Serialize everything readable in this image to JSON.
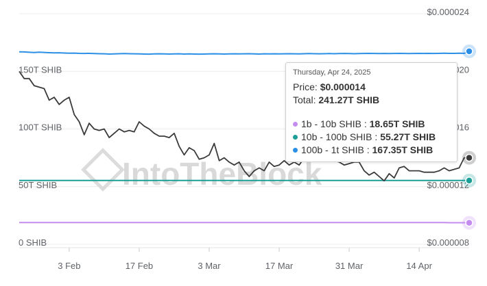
{
  "chart_data": {
    "type": "line",
    "x": [
      "2025-01-24",
      "2025-01-25",
      "2025-01-26",
      "2025-01-27",
      "2025-01-28",
      "2025-01-29",
      "2025-01-30",
      "2025-01-31",
      "2025-02-01",
      "2025-02-02",
      "2025-02-03",
      "2025-02-04",
      "2025-02-05",
      "2025-02-06",
      "2025-02-07",
      "2025-02-08",
      "2025-02-09",
      "2025-02-10",
      "2025-02-11",
      "2025-02-12",
      "2025-02-13",
      "2025-02-14",
      "2025-02-15",
      "2025-02-16",
      "2025-02-17",
      "2025-02-18",
      "2025-02-19",
      "2025-02-20",
      "2025-02-21",
      "2025-02-22",
      "2025-02-23",
      "2025-02-24",
      "2025-02-25",
      "2025-02-26",
      "2025-02-27",
      "2025-02-28",
      "2025-03-01",
      "2025-03-02",
      "2025-03-03",
      "2025-03-04",
      "2025-03-05",
      "2025-03-06",
      "2025-03-07",
      "2025-03-08",
      "2025-03-09",
      "2025-03-10",
      "2025-03-11",
      "2025-03-12",
      "2025-03-13",
      "2025-03-14",
      "2025-03-15",
      "2025-03-16",
      "2025-03-17",
      "2025-03-18",
      "2025-03-19",
      "2025-03-20",
      "2025-03-21",
      "2025-03-22",
      "2025-03-23",
      "2025-03-24",
      "2025-03-25",
      "2025-03-26",
      "2025-03-27",
      "2025-03-28",
      "2025-03-29",
      "2025-03-30",
      "2025-03-31",
      "2025-04-01",
      "2025-04-02",
      "2025-04-03",
      "2025-04-04",
      "2025-04-05",
      "2025-04-06",
      "2025-04-07",
      "2025-04-08",
      "2025-04-09",
      "2025-04-10",
      "2025-04-11",
      "2025-04-12",
      "2025-04-13",
      "2025-04-14",
      "2025-04-15",
      "2025-04-16",
      "2025-04-17",
      "2025-04-18",
      "2025-04-19",
      "2025-04-20",
      "2025-04-21",
      "2025-04-22",
      "2025-04-23",
      "2025-04-24"
    ],
    "series": [
      {
        "name": "1b - 10b SHIB",
        "axis": "left",
        "color": "#c58cf0",
        "values": [
          18.9,
          18.9,
          18.9,
          18.9,
          18.9,
          18.9,
          18.9,
          18.9,
          18.9,
          18.9,
          18.9,
          18.9,
          18.9,
          18.9,
          18.9,
          18.9,
          18.9,
          18.9,
          18.9,
          18.9,
          18.9,
          18.9,
          18.9,
          18.9,
          18.9,
          18.9,
          18.9,
          18.9,
          18.9,
          18.9,
          18.9,
          18.9,
          18.9,
          18.9,
          18.9,
          18.9,
          18.9,
          18.9,
          18.9,
          18.9,
          18.9,
          18.9,
          18.9,
          18.9,
          18.9,
          18.9,
          18.9,
          18.9,
          18.9,
          18.9,
          18.9,
          18.9,
          18.9,
          18.9,
          18.9,
          18.9,
          18.9,
          18.9,
          18.9,
          18.9,
          18.9,
          18.9,
          18.9,
          18.9,
          18.9,
          18.9,
          18.9,
          18.9,
          18.9,
          18.9,
          18.9,
          18.9,
          18.9,
          18.9,
          18.9,
          18.9,
          18.9,
          18.9,
          18.9,
          18.9,
          18.8,
          18.8,
          18.8,
          18.8,
          18.8,
          18.8,
          18.7,
          18.7,
          18.7,
          18.7,
          18.65
        ]
      },
      {
        "name": "10b - 100b SHIB",
        "axis": "left",
        "color": "#1a9e96",
        "values": [
          55.3,
          55.3,
          55.3,
          55.3,
          55.3,
          55.3,
          55.3,
          55.3,
          55.3,
          55.3,
          55.3,
          55.3,
          55.3,
          55.3,
          55.3,
          55.3,
          55.3,
          55.3,
          55.3,
          55.3,
          55.3,
          55.3,
          55.3,
          55.3,
          55.3,
          55.3,
          55.3,
          55.3,
          55.3,
          55.3,
          55.3,
          55.3,
          55.3,
          55.3,
          55.3,
          55.3,
          55.3,
          55.3,
          55.3,
          55.3,
          55.3,
          55.3,
          55.3,
          55.3,
          55.3,
          55.3,
          55.3,
          55.3,
          55.3,
          55.3,
          55.3,
          55.3,
          55.3,
          55.3,
          55.3,
          55.3,
          55.3,
          55.3,
          55.3,
          55.3,
          55.3,
          55.3,
          55.3,
          55.3,
          55.3,
          55.3,
          55.3,
          55.3,
          55.3,
          55.3,
          55.3,
          55.3,
          55.3,
          55.3,
          55.3,
          55.3,
          55.3,
          55.3,
          55.3,
          55.3,
          55.3,
          55.3,
          55.3,
          55.3,
          55.3,
          55.3,
          55.3,
          55.3,
          55.3,
          55.3,
          55.27
        ]
      },
      {
        "name": "100b - 1t SHIB",
        "axis": "left",
        "color": "#2b8fe6",
        "values": [
          166.9,
          166.8,
          166.5,
          166.3,
          166.6,
          166.4,
          166.2,
          166.0,
          166.1,
          165.9,
          165.7,
          165.8,
          165.6,
          165.5,
          165.6,
          165.4,
          165.3,
          165.2,
          165.0,
          165.1,
          165.3,
          165.4,
          165.3,
          165.2,
          165.1,
          165.0,
          164.9,
          165.1,
          165.2,
          165.1,
          165.0,
          165.1,
          165.2,
          165.0,
          165.1,
          165.0,
          164.9,
          165.0,
          165.1,
          165.2,
          165.1,
          165.0,
          165.1,
          165.2,
          165.1,
          165.2,
          165.3,
          165.1,
          165.0,
          165.2,
          165.1,
          165.2,
          165.1,
          165.2,
          165.3,
          165.2,
          165.1,
          165.3,
          165.4,
          165.3,
          165.2,
          165.3,
          165.4,
          165.3,
          165.4,
          165.5,
          165.4,
          165.3,
          165.4,
          165.5,
          165.6,
          165.5,
          165.4,
          165.5,
          165.4,
          165.5,
          165.6,
          165.5,
          165.4,
          165.5,
          165.6,
          165.5,
          165.6,
          165.5,
          165.6,
          165.7,
          165.6,
          165.6,
          165.7,
          165.6,
          167.35
        ]
      },
      {
        "name": "Price",
        "axis": "right",
        "color": "#3a3a3a",
        "values": [
          2e-05,
          1.95e-05,
          1.95e-05,
          1.9e-05,
          1.89e-05,
          1.88e-05,
          1.8e-05,
          1.82e-05,
          1.77e-05,
          1.8e-05,
          1.82e-05,
          1.7e-05,
          1.65e-05,
          1.56e-05,
          1.64e-05,
          1.6e-05,
          1.59e-05,
          1.6e-05,
          1.54e-05,
          1.57e-05,
          1.6e-05,
          1.58e-05,
          1.59e-05,
          1.58e-05,
          1.65e-05,
          1.62e-05,
          1.6e-05,
          1.57e-05,
          1.55e-05,
          1.55e-05,
          1.54e-05,
          1.57e-05,
          1.48e-05,
          1.42e-05,
          1.47e-05,
          1.45e-05,
          1.39e-05,
          1.4e-05,
          1.42e-05,
          1.5e-05,
          1.38e-05,
          1.4e-05,
          1.37e-05,
          1.35e-05,
          1.37e-05,
          1.31e-05,
          1.27e-05,
          1.31e-05,
          1.33e-05,
          1.31e-05,
          1.37e-05,
          1.34e-05,
          1.35e-05,
          1.38e-05,
          1.35e-05,
          1.37e-05,
          1.35e-05,
          1.4e-05,
          1.38e-05,
          1.4e-05,
          1.44e-05,
          1.5e-05,
          1.43e-05,
          1.38e-05,
          1.37e-05,
          1.35e-05,
          1.36e-05,
          1.37e-05,
          1.37e-05,
          1.31e-05,
          1.28e-05,
          1.3e-05,
          1.27e-05,
          1.24e-05,
          1.29e-05,
          1.26e-05,
          1.33e-05,
          1.34e-05,
          1.31e-05,
          1.31e-05,
          1.31e-05,
          1.3e-05,
          1.3e-05,
          1.3e-05,
          1.31e-05,
          1.33e-05,
          1.31e-05,
          1.32e-05,
          1.33e-05,
          1.4e-05,
          1.4e-05
        ]
      }
    ],
    "yaxis_left": {
      "ticks": [
        {
          "value": 0,
          "label": "0 SHIB"
        },
        {
          "value": 50,
          "label": "50T SHIB"
        },
        {
          "value": 100,
          "label": "100T SHIB"
        },
        {
          "value": 150,
          "label": "150T SHIB"
        }
      ],
      "ylim": [
        0,
        200
      ]
    },
    "yaxis_right": {
      "ticks": [
        {
          "value": 8e-06,
          "label": "$0.000008"
        },
        {
          "value": 1.2e-05,
          "label": "$0.000012"
        },
        {
          "value": 1.6e-05,
          "label": "$0.000016"
        },
        {
          "value": 2e-05,
          "label": "$0.000020"
        },
        {
          "value": 2.4e-05,
          "label": "$0.000024"
        }
      ],
      "ylim": [
        8e-06,
        2.4e-05
      ]
    },
    "xaxis": {
      "ticks": [
        {
          "value": "2025-02-03",
          "label": "3 Feb"
        },
        {
          "value": "2025-02-17",
          "label": "17 Feb"
        },
        {
          "value": "2025-03-03",
          "label": "3 Mar"
        },
        {
          "value": "2025-03-17",
          "label": "17 Mar"
        },
        {
          "value": "2025-03-31",
          "label": "31 Mar"
        },
        {
          "value": "2025-04-14",
          "label": "14 Apr"
        }
      ]
    },
    "grid": true,
    "watermark": "IntoTheBlock"
  },
  "tooltip": {
    "date": "Thursday, Apr 24, 2025",
    "price_label": "Price: ",
    "price_value": "$0.000014",
    "total_label": "Total: ",
    "total_value": "241.27T SHIB",
    "rows": [
      {
        "label": "1b - 10b SHIB : ",
        "value": "18.65T SHIB",
        "color": "#c58cf0"
      },
      {
        "label": "10b - 100b SHIB : ",
        "value": "55.27T SHIB",
        "color": "#1a9e96"
      },
      {
        "label": "100b - 1t SHIB : ",
        "value": "167.35T SHIB",
        "color": "#2b8fe6"
      }
    ]
  }
}
